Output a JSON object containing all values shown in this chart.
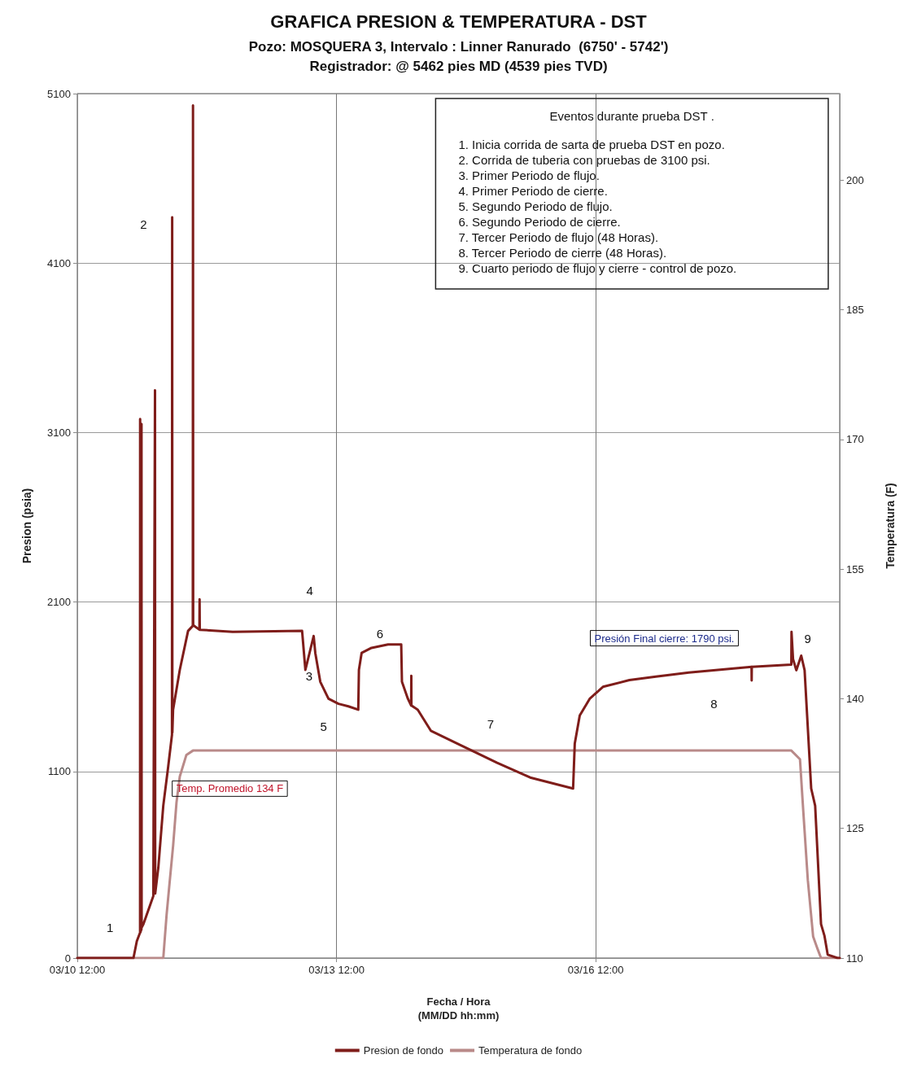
{
  "chart_data": {
    "type": "line",
    "title": "GRAFICA PRESION & TEMPERATURA - DST",
    "subtitle": "Pozo: MOSQUERA 3, Intervalo : Linner Ranurado  (6750' - 5742')\nRegistrador: @ 5462 pies MD (4539 pies TVD)",
    "xlabel": "Fecha / Hora\n(MM/DD hh:mm)",
    "ylabel": "Presion (psia)",
    "y2label": "Temperatura (F)",
    "xlim": [
      "--03-10T12:00",
      "--03-19T07:45"
    ],
    "xticks": [
      {
        "value": "--03-10T12:00",
        "label": "03/10 12:00"
      },
      {
        "value": "--03-13T12:00",
        "label": "03/13 12:00"
      },
      {
        "value": "--03-16T12:00",
        "label": "03/16 12:00"
      }
    ],
    "ylim": [
      0,
      5100
    ],
    "yticks": [
      0,
      1100,
      2100,
      3100,
      4100,
      5100
    ],
    "y2lim": [
      110,
      210
    ],
    "y2ticks": [
      110,
      125,
      140,
      155,
      170,
      185,
      200
    ],
    "grid": true,
    "legend": "bottom",
    "marker": "none",
    "line_style": "solid",
    "series": [
      {
        "name": "Presion de fondo",
        "color": "#7f1d1a",
        "x": [
          "--03-10T12:00",
          "--03-11T03:36",
          "--03-11T04:32",
          "--03-11T05:26",
          "--03-11T05:27",
          "--03-11T05:29",
          "--03-11T05:49",
          "--03-11T05:50",
          "--03-11T05:52",
          "--03-11T06:22",
          "--03-11T09:07",
          "--03-11T09:35",
          "--03-11T09:38",
          "--03-11T10:30",
          "--03-11T11:53",
          "--03-11T13:15",
          "--03-11T14:18",
          "--03-11T14:21",
          "--03-11T14:24",
          "--03-11T14:36",
          "--03-11T16:28",
          "--03-11T18:46",
          "--03-11T20:05",
          "--03-11T20:08",
          "--03-11T20:11",
          "--03-11T21:55",
          "--03-11T21:58",
          "--03-11T22:01",
          "--03-12T07:09",
          "--03-13T02:26",
          "--03-13T03:21",
          "--03-13T05:39",
          "--03-13T06:06",
          "--03-13T07:29",
          "--03-13T09:46",
          "--03-13T12:32",
          "--03-13T15:17",
          "--03-13T18:02",
          "--03-13T18:13",
          "--03-13T18:58",
          "--03-13T21:43",
          "--03-14T02:18",
          "--03-14T05:58",
          "--03-14T06:10",
          "--03-14T07:49",
          "--03-14T08:44",
          "--03-14T08:46",
          "--03-14T08:48",
          "--03-14T10:34",
          "--03-14T14:14",
          "--03-14T21:35",
          "--03-15T02:10",
          "--03-15T08:36",
          "--03-15T17:47",
          "--03-16T05:42",
          "--03-16T06:10",
          "--03-16T07:33",
          "--03-16T10:19",
          "--03-16T14:00",
          "--03-16T21:20",
          "--03-17T04:41",
          "--03-17T13:51",
          "--03-18T07:16",
          "--03-18T07:18",
          "--03-18T07:20",
          "--03-18T18:19",
          "--03-18T18:22",
          "--03-18T18:47",
          "--03-18T19:42",
          "--03-18T21:04",
          "--03-18T22:00",
          "--03-18T23:50",
          "--03-19T00:56",
          "--03-19T02:34",
          "--03-19T03:30",
          "--03-19T04:25",
          "--03-19T07:10",
          "--03-19T07:45"
        ],
        "values": [
          0,
          0,
          100,
          150,
          3180,
          150,
          170,
          3150,
          180,
          200,
          366,
          3350,
          380,
          533,
          900,
          1130,
          1318,
          4370,
          1330,
          1465,
          1700,
          1930,
          1960,
          5030,
          1964,
          1937,
          2117,
          1937,
          1924,
          1930,
          1700,
          1900,
          1800,
          1630,
          1530,
          1500,
          1485,
          1465,
          1700,
          1800,
          1830,
          1850,
          1850,
          1630,
          1530,
          1490,
          1665,
          1490,
          1465,
          1340,
          1265,
          1218,
          1152,
          1065,
          1000,
          1265,
          1431,
          1530,
          1600,
          1640,
          1660,
          1684,
          1718,
          1638,
          1718,
          1731,
          1924,
          1764,
          1698,
          1784,
          1698,
          1000,
          899,
          200,
          133,
          20,
          0,
          0
        ]
      },
      {
        "name": "Temperatura de fondo",
        "color": "#b98a89",
        "axis": "y2",
        "x": [
          "--03-10T12:00",
          "--03-11T11:53",
          "--03-11T12:48",
          "--03-11T13:42",
          "--03-11T14:37",
          "--03-11T15:33",
          "--03-11T16:28",
          "--03-11T18:18",
          "--03-11T20:08",
          "--03-15T00:00",
          "--03-18T18:19",
          "--03-18T20:43",
          "--03-18T21:38",
          "--03-18T22:54",
          "--03-19T00:22",
          "--03-19T01:39",
          "--03-19T02:34",
          "--03-19T07:45"
        ],
        "values": [
          110,
          110,
          115,
          119,
          123,
          128,
          131,
          133.5,
          134,
          134,
          134,
          133,
          127,
          119,
          112.5,
          111,
          110,
          110
        ]
      }
    ],
    "annotations": [
      "Eventos durante prueba DST .",
      "1. Inicia corrida de sarta de prueba DST en pozo.",
      "2. Corrida de tuberia con pruebas de 3100 psi.",
      "3. Primer Periodo de flujo.",
      "4. Primer Periodo de cierre.",
      "5. Segundo Periodo de flujo.",
      "6. Segundo Periodo de cierre.",
      "7. Tercer Periodo de flujo (48 Horas).",
      "8. Tercer Periodo de cierre (48 Horas).",
      "9. Cuarto periodo de flujo y cierre - control de pozo.",
      "1",
      "2",
      "3",
      "4",
      "5",
      "6",
      "7",
      "8",
      "9",
      "Temp. Promedio 134 F",
      "Presión Final cierre: 1790 psi."
    ]
  }
}
